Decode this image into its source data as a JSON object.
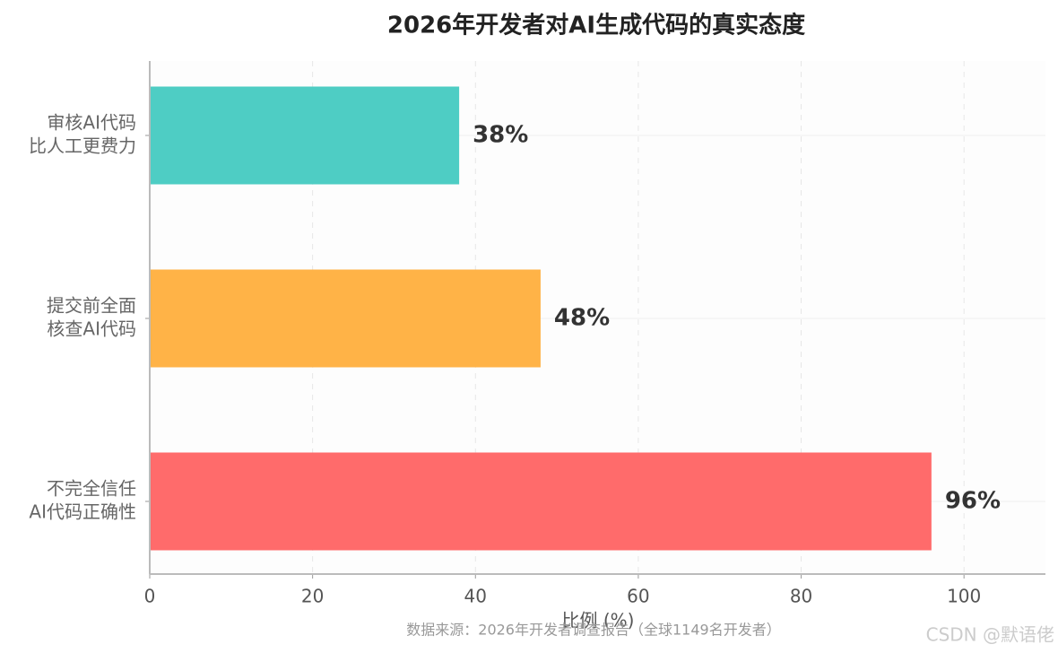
{
  "chart_data": {
    "type": "barh",
    "title": "2026年开发者对AI生成代码的真实态度",
    "categories": [
      [
        "审核AI代码",
        "比人工更费力"
      ],
      [
        "提交前全面",
        "核查AI代码"
      ],
      [
        "不完全信任",
        "AI代码正确性"
      ]
    ],
    "values": [
      38,
      48,
      96
    ],
    "value_labels": [
      "38%",
      "48%",
      "96%"
    ],
    "colors": [
      "#4ecdc4",
      "#ffb347",
      "#ff6b6b"
    ],
    "xlim": [
      0,
      110
    ],
    "xticks": [
      0,
      20,
      40,
      60,
      80,
      100
    ],
    "xlabel": "比例 (%)",
    "grid": true,
    "footnote": "数据来源：2026年开发者调查报告（全球1149名开发者）",
    "watermark": "CSDN @默语佬"
  }
}
